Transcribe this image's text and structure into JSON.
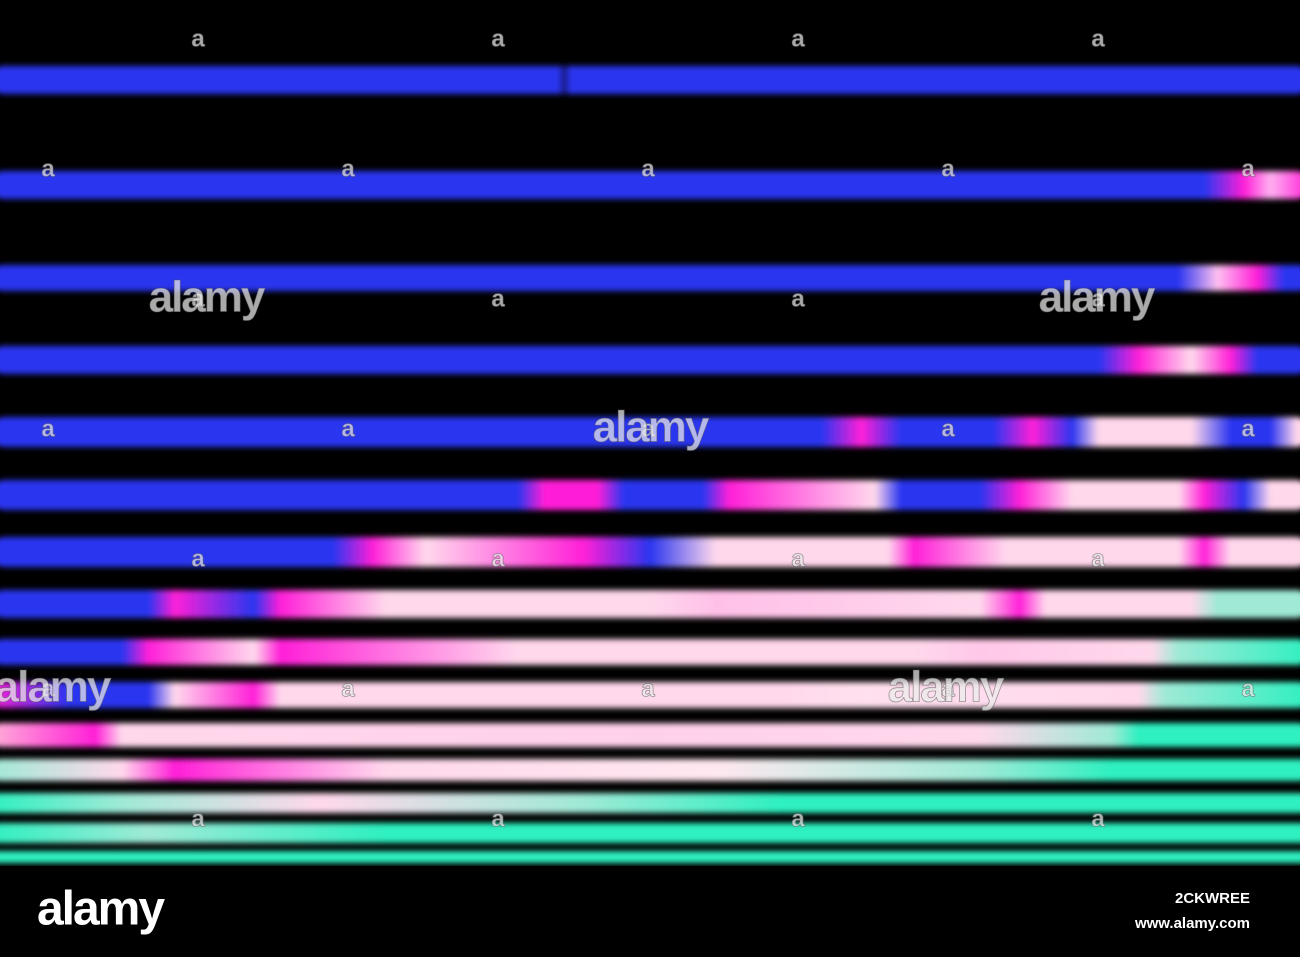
{
  "watermark": {
    "logo": "alamy",
    "mark": "a"
  },
  "footer": {
    "logo": "alamy",
    "image_id": "2CKWREE",
    "url": "www.alamy.com"
  }
}
